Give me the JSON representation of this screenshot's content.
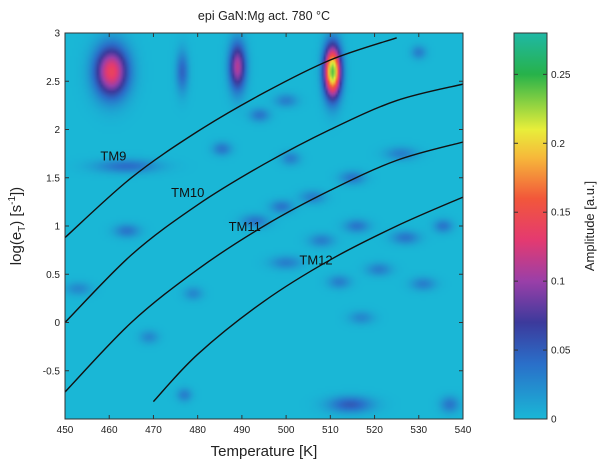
{
  "chart_data": {
    "type": "heatmap",
    "title": "epi GaN:Mg act. 780 °C",
    "xlabel": "Temperature  [K]",
    "ylabel_main": "log(e",
    "ylabel_sub": "T",
    "ylabel_mid": ")  [s",
    "ylabel_sup": "-1",
    "ylabel_end": "])",
    "xlim": [
      450,
      540
    ],
    "ylim": [
      -1,
      3
    ],
    "x_ticks": [
      "450",
      "460",
      "470",
      "480",
      "490",
      "500",
      "510",
      "520",
      "530",
      "540"
    ],
    "y_ticks": [
      "-0.5",
      "0",
      "0.5",
      "1",
      "1.5",
      "2",
      "2.5",
      "3"
    ],
    "colorbar": {
      "label": "Amplitude  [a.u.]",
      "range": [
        0,
        0.28
      ],
      "ticks": [
        "0",
        "0.05",
        "0.1",
        "0.15",
        "0.2",
        "0.25"
      ],
      "colors": [
        {
          "v": 0.0,
          "c": "#1ab7d6"
        },
        {
          "v": 0.04,
          "c": "#2a6fc9"
        },
        {
          "v": 0.07,
          "c": "#3c3a9c"
        },
        {
          "v": 0.1,
          "c": "#9a3fa8"
        },
        {
          "v": 0.13,
          "c": "#e43a70"
        },
        {
          "v": 0.16,
          "c": "#f2573a"
        },
        {
          "v": 0.19,
          "c": "#f6b93a"
        },
        {
          "v": 0.21,
          "c": "#e8ee3a"
        },
        {
          "v": 0.25,
          "c": "#27b24a"
        },
        {
          "v": 0.28,
          "c": "#1fb8a5"
        }
      ]
    },
    "peaks": [
      {
        "x": 460.5,
        "y": 2.6,
        "amp": 0.14,
        "sx": 2.6,
        "sy": 0.18
      },
      {
        "x": 489.0,
        "y": 2.65,
        "amp": 0.11,
        "sx": 1.3,
        "sy": 0.17
      },
      {
        "x": 476.5,
        "y": 2.6,
        "amp": 0.045,
        "sx": 1.0,
        "sy": 0.15
      },
      {
        "x": 510.5,
        "y": 2.6,
        "amp": 0.24,
        "sx": 1.3,
        "sy": 0.18
      },
      {
        "x": 464.0,
        "y": 1.62,
        "amp": 0.04,
        "sx": 5.0,
        "sy": 0.05
      },
      {
        "x": 485.5,
        "y": 1.8,
        "amp": 0.035,
        "sx": 1.5,
        "sy": 0.05
      },
      {
        "x": 494.0,
        "y": 2.15,
        "amp": 0.035,
        "sx": 1.6,
        "sy": 0.05
      },
      {
        "x": 500.0,
        "y": 2.3,
        "amp": 0.03,
        "sx": 1.8,
        "sy": 0.05
      },
      {
        "x": 493.0,
        "y": 1.05,
        "amp": 0.035,
        "sx": 2.2,
        "sy": 0.05
      },
      {
        "x": 499.0,
        "y": 1.2,
        "amp": 0.035,
        "sx": 1.8,
        "sy": 0.05
      },
      {
        "x": 506.0,
        "y": 1.3,
        "amp": 0.03,
        "sx": 2.0,
        "sy": 0.05
      },
      {
        "x": 515.0,
        "y": 1.5,
        "amp": 0.035,
        "sx": 2.0,
        "sy": 0.05
      },
      {
        "x": 526.0,
        "y": 1.75,
        "amp": 0.03,
        "sx": 2.5,
        "sy": 0.05
      },
      {
        "x": 500.0,
        "y": 0.62,
        "amp": 0.03,
        "sx": 2.5,
        "sy": 0.05
      },
      {
        "x": 508.0,
        "y": 0.85,
        "amp": 0.03,
        "sx": 2.0,
        "sy": 0.05
      },
      {
        "x": 516.0,
        "y": 1.0,
        "amp": 0.035,
        "sx": 2.0,
        "sy": 0.05
      },
      {
        "x": 521.0,
        "y": 0.55,
        "amp": 0.03,
        "sx": 2.0,
        "sy": 0.05
      },
      {
        "x": 527.0,
        "y": 0.88,
        "amp": 0.035,
        "sx": 2.2,
        "sy": 0.05
      },
      {
        "x": 512.0,
        "y": 0.42,
        "amp": 0.03,
        "sx": 1.8,
        "sy": 0.05
      },
      {
        "x": 517.0,
        "y": 0.05,
        "amp": 0.025,
        "sx": 2.0,
        "sy": 0.05
      },
      {
        "x": 531.0,
        "y": 0.4,
        "amp": 0.03,
        "sx": 2.0,
        "sy": 0.05
      },
      {
        "x": 535.5,
        "y": 1.0,
        "amp": 0.035,
        "sx": 1.5,
        "sy": 0.05
      },
      {
        "x": 464.0,
        "y": 0.95,
        "amp": 0.035,
        "sx": 2.0,
        "sy": 0.05
      },
      {
        "x": 469.0,
        "y": -0.15,
        "amp": 0.025,
        "sx": 1.5,
        "sy": 0.05
      },
      {
        "x": 479.0,
        "y": 0.3,
        "amp": 0.025,
        "sx": 1.5,
        "sy": 0.05
      },
      {
        "x": 453.0,
        "y": 0.35,
        "amp": 0.025,
        "sx": 2.0,
        "sy": 0.05
      },
      {
        "x": 514.5,
        "y": -0.85,
        "amp": 0.05,
        "sx": 3.5,
        "sy": 0.06
      },
      {
        "x": 537.0,
        "y": -0.85,
        "amp": 0.035,
        "sx": 1.5,
        "sy": 0.06
      },
      {
        "x": 477.0,
        "y": -0.75,
        "amp": 0.03,
        "sx": 1.2,
        "sy": 0.05
      },
      {
        "x": 530.0,
        "y": 2.8,
        "amp": 0.03,
        "sx": 1.2,
        "sy": 0.05
      },
      {
        "x": 501.0,
        "y": 1.7,
        "amp": 0.03,
        "sx": 1.5,
        "sy": 0.05
      }
    ],
    "curves": [
      {
        "name": "TM9",
        "points": [
          [
            450,
            0.88
          ],
          [
            465,
            1.5
          ],
          [
            480,
            1.98
          ],
          [
            495,
            2.38
          ],
          [
            510,
            2.72
          ],
          [
            525,
            2.95
          ]
        ],
        "label_x": 458,
        "label_y": 1.68
      },
      {
        "name": "TM10",
        "points": [
          [
            450,
            0.0
          ],
          [
            465,
            0.7
          ],
          [
            480,
            1.22
          ],
          [
            495,
            1.64
          ],
          [
            510,
            2.0
          ],
          [
            525,
            2.3
          ],
          [
            540,
            2.47
          ]
        ],
        "label_x": 474,
        "label_y": 1.3
      },
      {
        "name": "TM11",
        "points": [
          [
            450,
            -0.72
          ],
          [
            465,
            0.0
          ],
          [
            480,
            0.55
          ],
          [
            495,
            1.0
          ],
          [
            510,
            1.37
          ],
          [
            525,
            1.68
          ],
          [
            540,
            1.87
          ]
        ],
        "label_x": 487,
        "label_y": 0.95
      },
      {
        "name": "TM12",
        "points": [
          [
            470,
            -0.82
          ],
          [
            480,
            -0.33
          ],
          [
            495,
            0.22
          ],
          [
            510,
            0.65
          ],
          [
            525,
            1.0
          ],
          [
            540,
            1.3
          ]
        ],
        "label_x": 503,
        "label_y": 0.6
      }
    ]
  }
}
